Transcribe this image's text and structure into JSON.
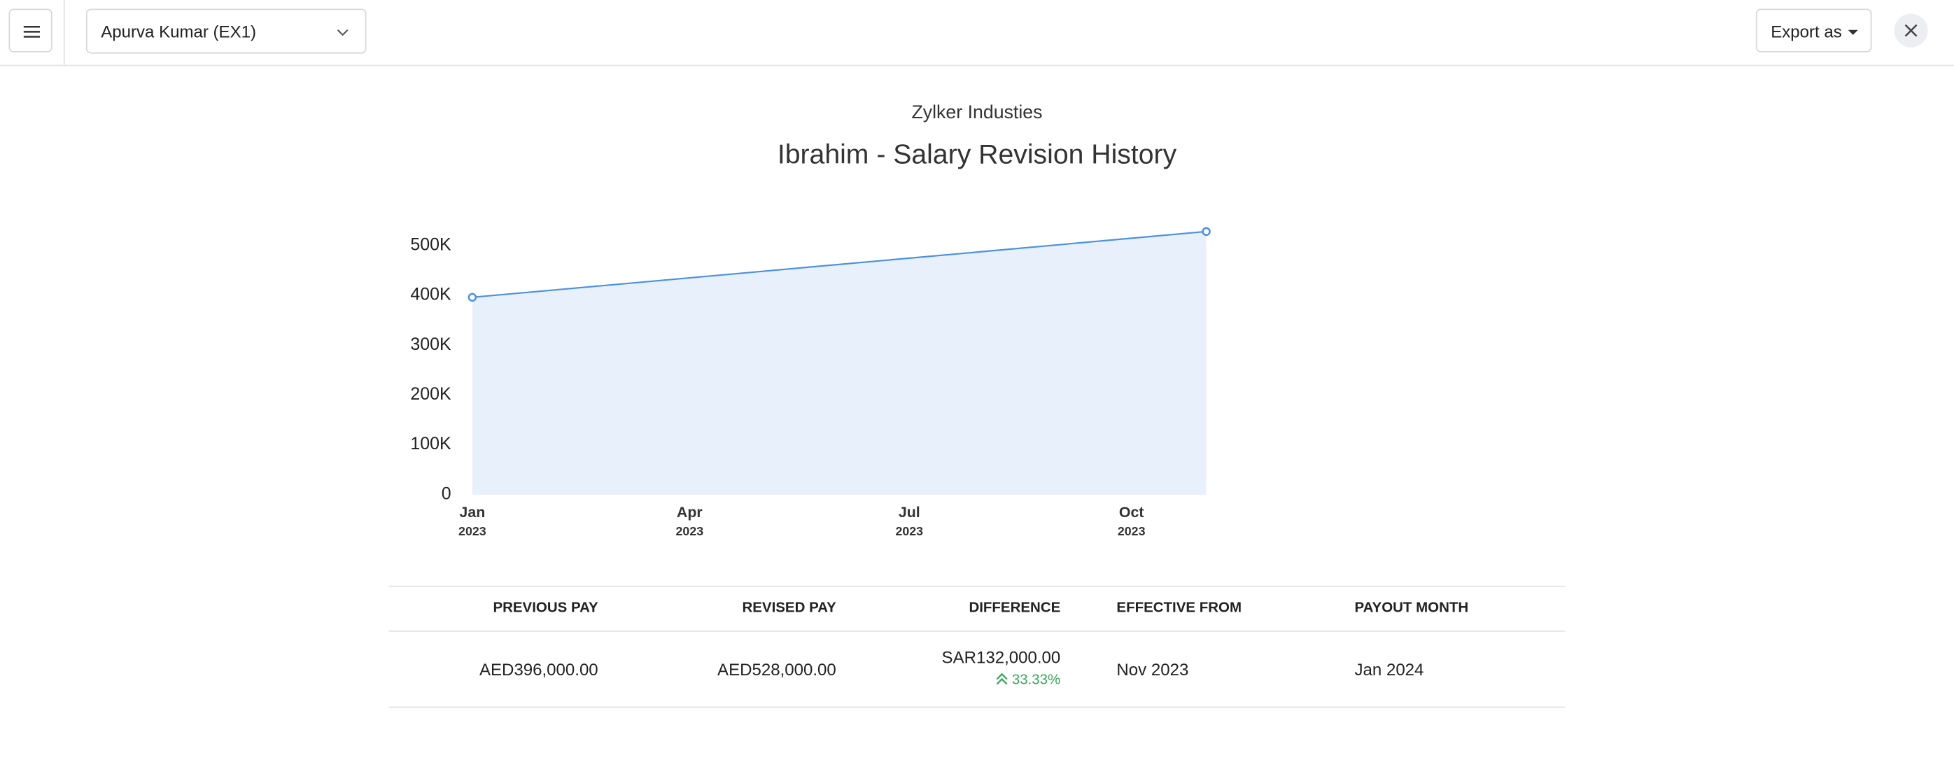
{
  "header": {
    "employee": "Apurva Kumar (EX1)",
    "export": "Export as"
  },
  "report": {
    "company": "Zylker Industies",
    "title": "Ibrahim - Salary Revision History"
  },
  "chart_data": {
    "type": "area",
    "x": [
      "2023-01",
      "2023-11"
    ],
    "series": [
      {
        "values": [
          396000,
          528000
        ],
        "color": "#4a90e2"
      }
    ],
    "xlim": [
      "2023-01",
      "2023-11"
    ],
    "xticks": [
      {
        "value": "2023-01",
        "label": "Jan",
        "year": "2023"
      },
      {
        "value": "2023-04",
        "label": "Apr",
        "year": "2023"
      },
      {
        "value": "2023-07",
        "label": "Jul",
        "year": "2023"
      },
      {
        "value": "2023-10",
        "label": "Oct",
        "year": "2023"
      }
    ],
    "ylim": [
      0,
      500000
    ],
    "yticks": [
      {
        "value": 0,
        "label": "0"
      },
      {
        "value": 100000,
        "label": "100K"
      },
      {
        "value": 200000,
        "label": "200K"
      },
      {
        "value": 300000,
        "label": "300K"
      },
      {
        "value": 400000,
        "label": "400K"
      },
      {
        "value": 500000,
        "label": "500K"
      }
    ],
    "fill": "#e8f0fc",
    "grid": false
  },
  "table": {
    "headers": [
      "PREVIOUS PAY",
      "REVISED PAY",
      "DIFFERENCE",
      "EFFECTIVE FROM",
      "PAYOUT MONTH"
    ],
    "rows": [
      {
        "previous_pay": "AED396,000.00",
        "revised_pay": "AED528,000.00",
        "difference": "SAR132,000.00",
        "difference_percent": "33.33%",
        "effective_from": "Nov 2023",
        "payout_month": "Jan 2024"
      }
    ]
  }
}
